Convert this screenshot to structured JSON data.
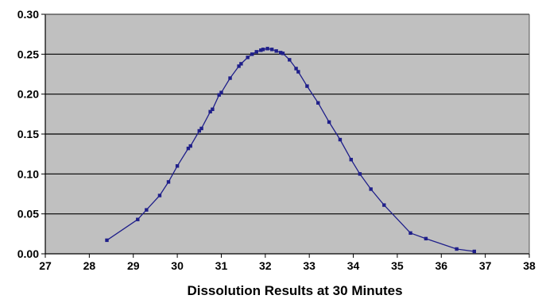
{
  "chart_data": {
    "type": "line",
    "title": "",
    "xlabel": "Dissolution Results at 30 Minutes",
    "ylabel": "",
    "xlim": [
      27,
      38
    ],
    "ylim": [
      0,
      0.3
    ],
    "x_ticks": [
      "27",
      "28",
      "29",
      "30",
      "31",
      "32",
      "33",
      "34",
      "35",
      "36",
      "37",
      "38"
    ],
    "y_ticks": [
      "0.00",
      "0.05",
      "0.10",
      "0.15",
      "0.20",
      "0.25",
      "0.30"
    ],
    "grid": "horizontal",
    "legend": "none",
    "colors": {
      "plot_background": "#c0c0c0",
      "gridline": "#000000",
      "series": "#1f1f8a"
    },
    "series": [
      {
        "x": [
          28.4,
          29.1,
          29.3,
          29.6,
          29.8,
          30.0,
          30.25,
          30.3,
          30.5,
          30.55,
          30.75,
          30.8,
          30.95,
          31.0,
          31.2,
          31.4,
          31.45,
          31.6,
          31.7,
          31.8,
          31.9,
          31.95,
          32.05,
          32.15,
          32.25,
          32.35,
          32.4,
          32.55,
          32.7,
          32.75,
          32.95,
          33.2,
          33.45,
          33.7,
          33.95,
          34.15,
          34.4,
          34.7,
          35.3,
          35.65,
          36.35,
          36.75
        ],
        "y": [
          0.017,
          0.043,
          0.055,
          0.073,
          0.09,
          0.11,
          0.132,
          0.135,
          0.154,
          0.157,
          0.178,
          0.181,
          0.199,
          0.202,
          0.22,
          0.235,
          0.238,
          0.246,
          0.25,
          0.253,
          0.255,
          0.256,
          0.257,
          0.256,
          0.254,
          0.252,
          0.251,
          0.243,
          0.232,
          0.228,
          0.21,
          0.189,
          0.165,
          0.143,
          0.118,
          0.1,
          0.081,
          0.061,
          0.026,
          0.019,
          0.006,
          0.003
        ]
      }
    ]
  }
}
